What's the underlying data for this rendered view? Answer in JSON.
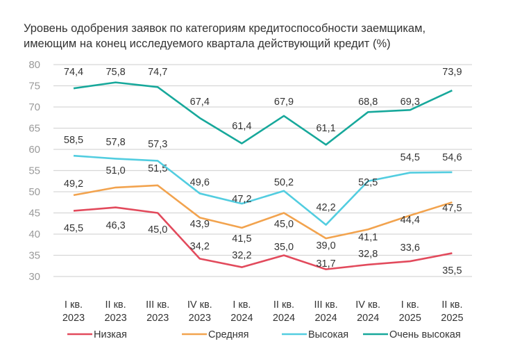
{
  "chart_data": {
    "type": "line",
    "title": "Уровень одобрения заявок по категориям кредитоспособности заемщикам, имеющим на конец исследуемого квартала действующий кредит (%)",
    "title_lines": [
      "Уровень одобрения заявок по категориям кредитоспособности заемщикам,",
      "имеющим на конец исследуемого квартала действующий кредит (%)"
    ],
    "categories": [
      [
        "I кв.",
        "2023"
      ],
      [
        "II кв.",
        "2023"
      ],
      [
        "III кв.",
        "2023"
      ],
      [
        "IV кв.",
        "2023"
      ],
      [
        "I кв.",
        "2024"
      ],
      [
        "II кв.",
        "2024"
      ],
      [
        "III кв.",
        "2024"
      ],
      [
        "IV кв.",
        "2024"
      ],
      [
        "I кв.",
        "2025"
      ],
      [
        "II кв.",
        "2025"
      ]
    ],
    "ylim": [
      30,
      80
    ],
    "yticks": [
      30,
      35,
      40,
      45,
      50,
      55,
      60,
      65,
      70,
      75,
      80
    ],
    "grid": true,
    "legend_position": "bottom",
    "series": [
      {
        "name": "Низкая",
        "color": "#e24a5c",
        "values": [
          45.5,
          46.3,
          45.0,
          34.2,
          32.2,
          35.0,
          31.7,
          32.8,
          33.6,
          35.5
        ]
      },
      {
        "name": "Средняя",
        "color": "#f2a34e",
        "values": [
          49.2,
          51.0,
          51.5,
          43.9,
          41.5,
          45.0,
          39.0,
          41.1,
          44.4,
          47.5
        ]
      },
      {
        "name": "Высокая",
        "color": "#52cde0",
        "values": [
          58.5,
          57.8,
          57.3,
          49.6,
          47.2,
          50.2,
          42.2,
          52.5,
          54.5,
          54.6
        ]
      },
      {
        "name": "Очень высокая",
        "color": "#17a89b",
        "values": [
          74.4,
          75.8,
          74.7,
          67.4,
          61.4,
          67.9,
          61.1,
          68.8,
          69.3,
          73.9
        ]
      }
    ]
  }
}
